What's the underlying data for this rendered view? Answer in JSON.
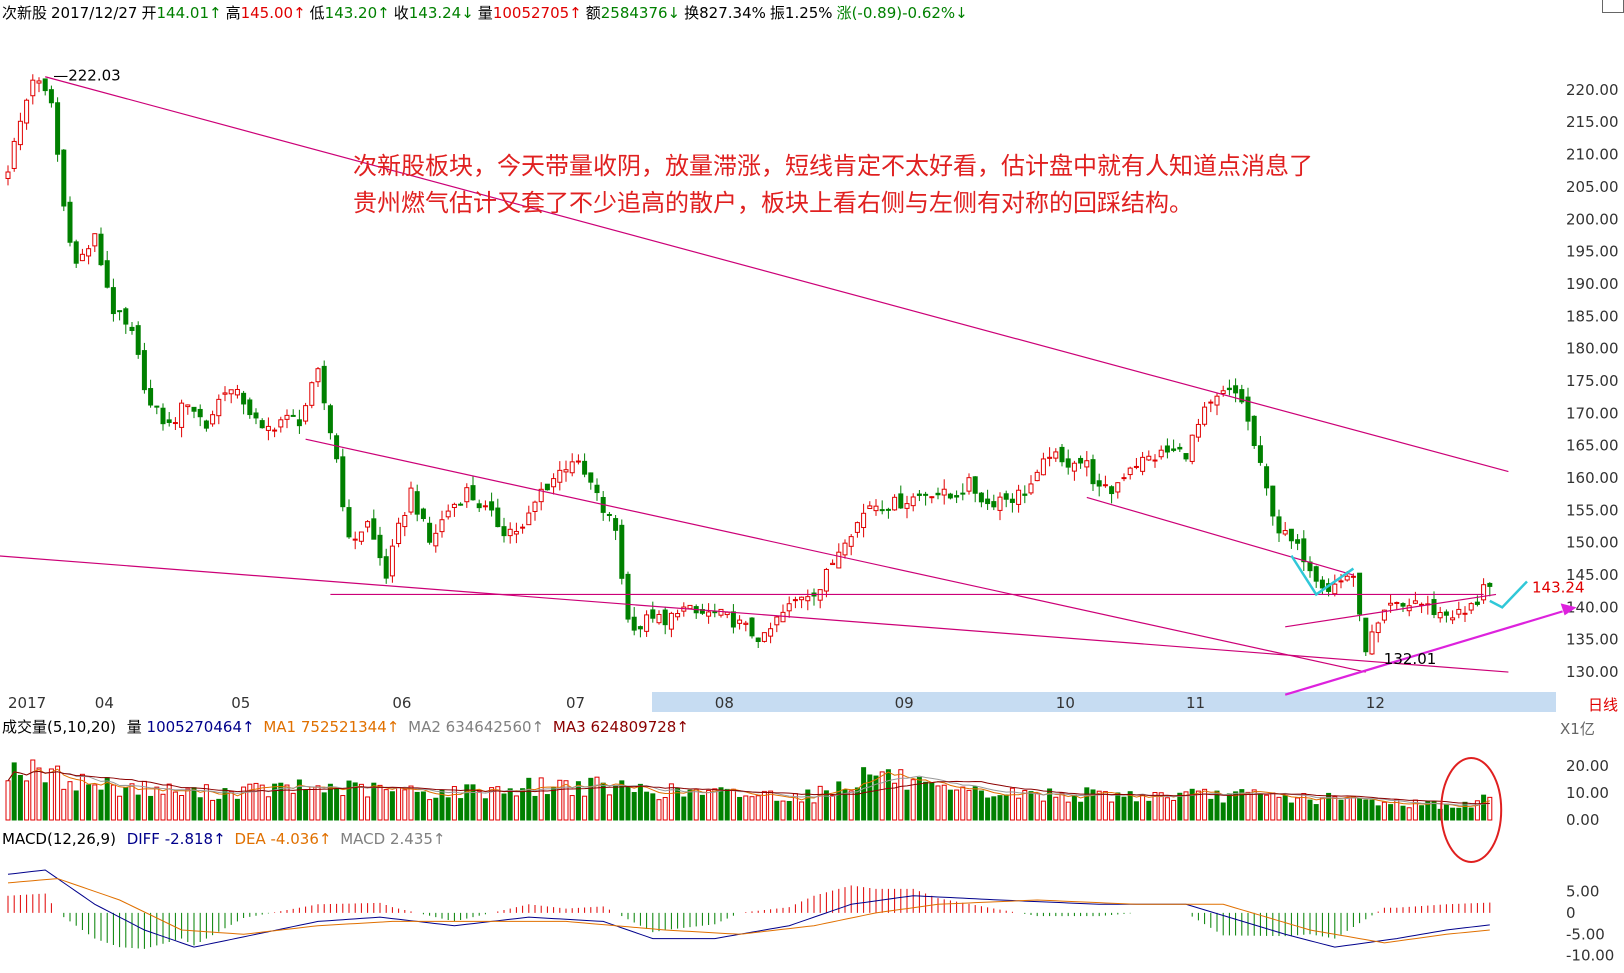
{
  "header": {
    "name": "次新股",
    "date": "2017/12/27",
    "open_label": "开",
    "open": "144.01↑",
    "high_label": "高",
    "high": "145.00↑",
    "low_label": "低",
    "low": "143.20↑",
    "close_label": "收",
    "close": "143.24↓",
    "vol_label": "量",
    "vol": "10052705↑",
    "amt_label": "额",
    "amt": "2584376↓",
    "turn_label": "换",
    "turn": "827.34%",
    "amp_label": "振",
    "amp": "1.25%",
    "chg_label": "涨",
    "chg": "(-0.89)-0.62%↓"
  },
  "annotation": {
    "line1": "次新股板块，今天带量收阴，放量滞涨，短线肯定不太好看，估计盘中就有人知道点消息了",
    "line2": "贵州燃气估计又套了不少追高的散户，板块上看右侧与左侧有对称的回踩结构。"
  },
  "volume_header": {
    "title": "成交量(5,10,20)",
    "vol_label": "量",
    "vol": "1005270464↑",
    "ma1_label": "MA1",
    "ma1": "752521344↑",
    "ma2_label": "MA2",
    "ma2": "634642560↑",
    "ma3_label": "MA3",
    "ma3": "624809728↑"
  },
  "macd_header": {
    "title": "MACD(12,26,9)",
    "diff_label": "DIFF",
    "diff": "-2.818↑",
    "dea_label": "DEA",
    "dea": "-4.036↑",
    "macd_label": "MACD",
    "macd": "2.435↑"
  },
  "colors": {
    "up": "#e00000",
    "down": "#008000",
    "trendline": "#cc0077",
    "arrow": "#dd22dd",
    "cyan": "#30c8d8",
    "diff": "#00008b",
    "dea": "#e07000",
    "ma3": "#8b0000",
    "circle": "#e02020",
    "timebar": "#c6dcf2"
  },
  "chart_data": [
    {
      "type": "candlestick",
      "ylim": [
        128,
        224
      ],
      "yticks": [
        "220.00",
        "215.00",
        "210.00",
        "205.00",
        "200.00",
        "195.00",
        "190.00",
        "185.00",
        "180.00",
        "175.00",
        "170.00",
        "165.00",
        "160.00",
        "155.00",
        "150.00",
        "145.00",
        "140.00",
        "135.00",
        "130.00"
      ],
      "ytick_values": [
        220,
        215,
        210,
        205,
        200,
        195,
        190,
        185,
        180,
        175,
        170,
        165,
        160,
        155,
        150,
        145,
        140,
        135,
        130
      ],
      "xticks": [
        "2017",
        "04",
        "05",
        "06",
        "07",
        "08",
        "09",
        "10",
        "11",
        "12"
      ],
      "xtick_index": [
        0,
        14,
        36,
        62,
        90,
        114,
        143,
        169,
        190,
        219
      ],
      "period_label": "日线",
      "last_price": "143.24",
      "high_marker": "222.03",
      "low_marker": "132.01",
      "anchors": [
        [
          0,
          208
        ],
        [
          4,
          222
        ],
        [
          7,
          218
        ],
        [
          9,
          202
        ],
        [
          11,
          193
        ],
        [
          14,
          197
        ],
        [
          17,
          186
        ],
        [
          20,
          182
        ],
        [
          23,
          171
        ],
        [
          26,
          168
        ],
        [
          29,
          172
        ],
        [
          32,
          168
        ],
        [
          35,
          174
        ],
        [
          38,
          172
        ],
        [
          41,
          167
        ],
        [
          44,
          169
        ],
        [
          47,
          169
        ],
        [
          50,
          176
        ],
        [
          53,
          163
        ],
        [
          55,
          150
        ],
        [
          58,
          153
        ],
        [
          61,
          145
        ],
        [
          63,
          152
        ],
        [
          65,
          158
        ],
        [
          68,
          150
        ],
        [
          71,
          155
        ],
        [
          74,
          158
        ],
        [
          77,
          155
        ],
        [
          80,
          152
        ],
        [
          83,
          152
        ],
        [
          86,
          158
        ],
        [
          88,
          160
        ],
        [
          91,
          163
        ],
        [
          94,
          159
        ],
        [
          96,
          155
        ],
        [
          98,
          152
        ],
        [
          100,
          138
        ],
        [
          102,
          137
        ],
        [
          104,
          139
        ],
        [
          106,
          137
        ],
        [
          108,
          140
        ],
        [
          111,
          139
        ],
        [
          114,
          139
        ],
        [
          117,
          138
        ],
        [
          120,
          136
        ],
        [
          122,
          135
        ],
        [
          124,
          138
        ],
        [
          126,
          140
        ],
        [
          128,
          142
        ],
        [
          131,
          143
        ],
        [
          133,
          147
        ],
        [
          135,
          151
        ],
        [
          137,
          153
        ],
        [
          139,
          156
        ],
        [
          141,
          156
        ],
        [
          143,
          156
        ],
        [
          146,
          157
        ],
        [
          149,
          158
        ],
        [
          152,
          157
        ],
        [
          155,
          159
        ],
        [
          158,
          156
        ],
        [
          160,
          157
        ],
        [
          162,
          157
        ],
        [
          164,
          158
        ],
        [
          166,
          160
        ],
        [
          168,
          164
        ],
        [
          170,
          162
        ],
        [
          172,
          163
        ],
        [
          174,
          162
        ],
        [
          176,
          158
        ],
        [
          178,
          158
        ],
        [
          181,
          162
        ],
        [
          184,
          163
        ],
        [
          187,
          164
        ],
        [
          190,
          164
        ],
        [
          193,
          170
        ],
        [
          196,
          173
        ],
        [
          198,
          173
        ],
        [
          199,
          172
        ],
        [
          201,
          165
        ],
        [
          203,
          158
        ],
        [
          205,
          152
        ],
        [
          207,
          150
        ],
        [
          209,
          148
        ],
        [
          211,
          145
        ],
        [
          213,
          143
        ],
        [
          215,
          144
        ],
        [
          216,
          145
        ],
        [
          217,
          145
        ],
        [
          218,
          138
        ],
        [
          219,
          134
        ],
        [
          221,
          137
        ],
        [
          223,
          140
        ],
        [
          225,
          140
        ],
        [
          227,
          141
        ],
        [
          229,
          140
        ],
        [
          231,
          139
        ],
        [
          233,
          139
        ],
        [
          235,
          139
        ],
        [
          237,
          141
        ],
        [
          238,
          144
        ],
        [
          239,
          143.24
        ]
      ],
      "trendlines": [
        {
          "from": [
            6,
            222.03
          ],
          "to": [
            242,
            161
          ]
        },
        {
          "from": [
            48,
            166
          ],
          "to": [
            219,
            130
          ]
        },
        {
          "from": [
            174,
            157
          ],
          "to": [
            217,
            145
          ]
        },
        {
          "from": [
            -2,
            148
          ],
          "to": [
            242,
            130
          ]
        },
        {
          "from": [
            52,
            142
          ],
          "to": [
            238,
            142
          ]
        },
        {
          "from": [
            206,
            137
          ],
          "to": [
            240,
            142
          ]
        }
      ],
      "arrow": {
        "from": [
          206,
          126.5
        ],
        "to": [
          253,
          140
        ]
      },
      "cyan_marks": [
        {
          "points": [
            [
              207,
              148
            ],
            [
              211,
              142
            ],
            [
              217,
              146
            ]
          ]
        },
        {
          "points": [
            [
              239,
              141
            ],
            [
              241,
              140
            ],
            [
              245,
              144
            ]
          ]
        }
      ]
    },
    {
      "type": "bar",
      "name": "volume",
      "yticks": [
        "20.00",
        "10.00",
        "0.00"
      ],
      "ytick_values": [
        20,
        10,
        0
      ],
      "ylim": [
        0,
        26
      ],
      "unit_label": "X1亿",
      "anchors": [
        [
          0,
          20
        ],
        [
          5,
          17
        ],
        [
          15,
          13
        ],
        [
          30,
          10
        ],
        [
          50,
          12
        ],
        [
          70,
          10
        ],
        [
          90,
          13
        ],
        [
          110,
          10
        ],
        [
          130,
          9
        ],
        [
          140,
          18
        ],
        [
          150,
          10
        ],
        [
          180,
          9
        ],
        [
          200,
          9
        ],
        [
          220,
          7
        ],
        [
          236,
          5
        ],
        [
          238,
          8
        ],
        [
          239,
          10
        ]
      ]
    },
    {
      "type": "bar",
      "name": "macd",
      "yticks": [
        "5.00",
        "0",
        "-5.00",
        "-10.00"
      ],
      "ytick_values": [
        5,
        0,
        -5,
        -10
      ],
      "ylim": [
        -11,
        10
      ],
      "diff_anchors": [
        [
          0,
          9
        ],
        [
          6,
          10
        ],
        [
          14,
          2
        ],
        [
          22,
          -4
        ],
        [
          30,
          -8
        ],
        [
          40,
          -5
        ],
        [
          50,
          -2
        ],
        [
          60,
          -1
        ],
        [
          72,
          -3
        ],
        [
          84,
          -1
        ],
        [
          96,
          -2
        ],
        [
          104,
          -6
        ],
        [
          114,
          -6
        ],
        [
          126,
          -3
        ],
        [
          136,
          2
        ],
        [
          146,
          4
        ],
        [
          160,
          3
        ],
        [
          176,
          2
        ],
        [
          190,
          2
        ],
        [
          206,
          -5
        ],
        [
          214,
          -8
        ],
        [
          224,
          -6
        ],
        [
          232,
          -4
        ],
        [
          239,
          -2.8
        ]
      ],
      "dea_anchors": [
        [
          0,
          7
        ],
        [
          8,
          8
        ],
        [
          18,
          3
        ],
        [
          28,
          -4
        ],
        [
          38,
          -5
        ],
        [
          50,
          -3
        ],
        [
          62,
          -2
        ],
        [
          76,
          -2
        ],
        [
          90,
          -2
        ],
        [
          106,
          -4
        ],
        [
          118,
          -5
        ],
        [
          130,
          -3
        ],
        [
          140,
          0
        ],
        [
          150,
          2
        ],
        [
          166,
          3
        ],
        [
          182,
          2
        ],
        [
          196,
          2
        ],
        [
          210,
          -4
        ],
        [
          222,
          -7
        ],
        [
          232,
          -5
        ],
        [
          239,
          -4
        ]
      ],
      "hist_scale": 2
    }
  ]
}
